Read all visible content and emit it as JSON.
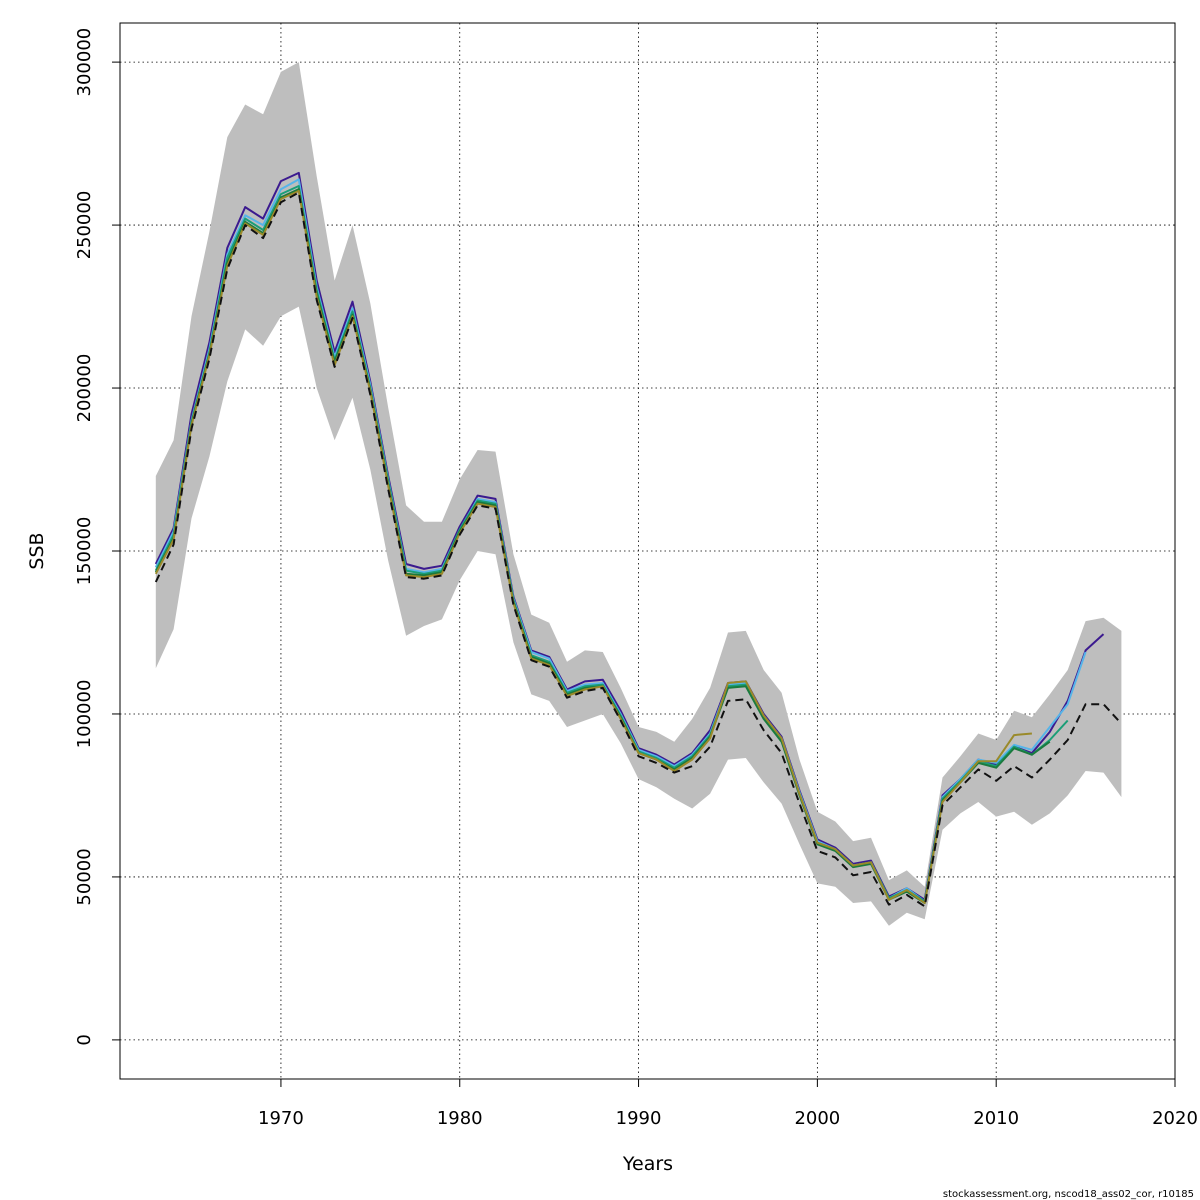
{
  "chart_data": {
    "type": "line",
    "xlabel": "Years",
    "ylabel": "SSB",
    "xlim": [
      1961,
      2020
    ],
    "ylim": [
      -12000,
      312000
    ],
    "x_ticks": [
      1970,
      1980,
      1990,
      2000,
      2010,
      2020
    ],
    "y_ticks": [
      0,
      50000,
      100000,
      150000,
      200000,
      250000,
      300000
    ],
    "grid": true,
    "footer": "stockassessment.org, nscod18_ass02_cor, r10185",
    "confidence_band": {
      "color": "#bebebe",
      "years": [
        1963,
        1964,
        1965,
        1966,
        1967,
        1968,
        1969,
        1970,
        1971,
        1972,
        1973,
        1974,
        1975,
        1976,
        1977,
        1978,
        1979,
        1980,
        1981,
        1982,
        1983,
        1984,
        1985,
        1986,
        1987,
        1988,
        1989,
        1990,
        1991,
        1992,
        1993,
        1994,
        1995,
        1996,
        1997,
        1998,
        1999,
        2000,
        2001,
        2002,
        2003,
        2004,
        2005,
        2006,
        2007,
        2008,
        2009,
        2010,
        2011,
        2012,
        2013,
        2014,
        2015,
        2016,
        2017
      ],
      "lower": [
        114000,
        126000,
        160000,
        179000,
        202000,
        218000,
        213000,
        222000,
        225000,
        200000,
        184000,
        197000,
        175000,
        147000,
        124000,
        127000,
        129000,
        141000,
        150000,
        149000,
        122000,
        106000,
        104000,
        96000,
        98000,
        100000,
        91000,
        80000,
        77500,
        74000,
        71000,
        75500,
        86000,
        86500,
        79000,
        72500,
        60000,
        48000,
        47000,
        42000,
        42500,
        35000,
        39000,
        37000,
        64500,
        69500,
        73000,
        68500,
        70000,
        66000,
        69500,
        75000,
        82500,
        82000,
        74500
      ],
      "upper": [
        173000,
        184000,
        222000,
        248000,
        277000,
        287000,
        284000,
        297000,
        300000,
        265000,
        233000,
        250000,
        226000,
        194000,
        164000,
        159000,
        159000,
        172000,
        181000,
        180500,
        149000,
        130500,
        128000,
        116000,
        119500,
        119000,
        108000,
        96000,
        94500,
        91500,
        98500,
        108000,
        125000,
        125500,
        113500,
        106500,
        86000,
        70000,
        67000,
        61000,
        62000,
        49000,
        52000,
        47000,
        80500,
        87000,
        94000,
        92000,
        101000,
        99000,
        106000,
        113500,
        128500,
        129500,
        125500
      ]
    },
    "series": [
      {
        "color": "#3b1a8f",
        "dash": "",
        "years": [
          1963,
          1964,
          1965,
          1966,
          1967,
          1968,
          1969,
          1970,
          1971,
          1972,
          1973,
          1974,
          1975,
          1976,
          1977,
          1978,
          1979,
          1980,
          1981,
          1982,
          1983,
          1984,
          1985,
          1986,
          1987,
          1988,
          1989,
          1990,
          1991,
          1992,
          1993,
          1994,
          1995,
          1996,
          1997,
          1998,
          1999,
          2000,
          2001,
          2002,
          2003,
          2004,
          2005,
          2006,
          2007,
          2008,
          2009,
          2010,
          2011,
          2012,
          2013,
          2014,
          2015,
          2016
        ],
        "values": [
          146000,
          157000,
          192000,
          214000,
          243000,
          255500,
          252000,
          263500,
          266000,
          233000,
          211000,
          226500,
          202000,
          173000,
          146000,
          144500,
          145500,
          157500,
          167000,
          166000,
          136000,
          119500,
          117500,
          107500,
          110000,
          110500,
          101000,
          89500,
          87500,
          84500,
          88000,
          95000,
          109500,
          110000,
          100000,
          93000,
          76500,
          61500,
          59000,
          54000,
          55000,
          44000,
          46500,
          43000,
          75000,
          80000,
          86000,
          84500,
          90000,
          88000,
          94500,
          104000,
          119500,
          124500
        ]
      },
      {
        "color": "#56b4e9",
        "dash": "",
        "years": [
          1963,
          1964,
          1965,
          1966,
          1967,
          1968,
          1969,
          1970,
          1971,
          1972,
          1973,
          1974,
          1975,
          1976,
          1977,
          1978,
          1979,
          1980,
          1981,
          1982,
          1983,
          1984,
          1985,
          1986,
          1987,
          1988,
          1989,
          1990,
          1991,
          1992,
          1993,
          1994,
          1995,
          1996,
          1997,
          1998,
          1999,
          2000,
          2001,
          2002,
          2003,
          2004,
          2005,
          2006,
          2007,
          2008,
          2009,
          2010,
          2011,
          2012,
          2013,
          2014,
          2015
        ],
        "values": [
          145000,
          156000,
          190000,
          212000,
          241000,
          253000,
          250000,
          261000,
          264000,
          231000,
          209500,
          224500,
          201000,
          172000,
          144500,
          143500,
          144500,
          156500,
          166000,
          165000,
          135500,
          119000,
          117000,
          107000,
          109000,
          109500,
          100000,
          89000,
          87000,
          84000,
          87500,
          94000,
          109000,
          109500,
          99500,
          92500,
          76000,
          61000,
          58500,
          53500,
          54500,
          43500,
          46500,
          42500,
          74500,
          80000,
          86000,
          85000,
          90500,
          89000,
          96000,
          103000,
          119000
        ]
      },
      {
        "color": "#1a9e77",
        "dash": "",
        "years": [
          1963,
          1964,
          1965,
          1966,
          1967,
          1968,
          1969,
          1970,
          1971,
          1972,
          1973,
          1974,
          1975,
          1976,
          1977,
          1978,
          1979,
          1980,
          1981,
          1982,
          1983,
          1984,
          1985,
          1986,
          1987,
          1988,
          1989,
          1990,
          1991,
          1992,
          1993,
          1994,
          1995,
          1996,
          1997,
          1998,
          1999,
          2000,
          2001,
          2002,
          2003,
          2004,
          2005,
          2006,
          2007,
          2008,
          2009,
          2010,
          2011,
          2012,
          2013,
          2014
        ],
        "values": [
          144000,
          155000,
          189500,
          211000,
          240000,
          252000,
          248500,
          259500,
          262000,
          230000,
          208500,
          223500,
          200000,
          171500,
          144000,
          143000,
          144000,
          156500,
          165500,
          164500,
          135000,
          118000,
          116000,
          106500,
          108500,
          109000,
          99500,
          88500,
          86500,
          83500,
          87000,
          93500,
          108500,
          109000,
          99000,
          92000,
          75500,
          60500,
          58500,
          53500,
          54500,
          43500,
          46000,
          42500,
          74000,
          79500,
          85500,
          84000,
          90000,
          87500,
          92000,
          98000
        ]
      },
      {
        "color": "#1b7a3e",
        "dash": "",
        "years": [
          1963,
          1964,
          1965,
          1966,
          1967,
          1968,
          1969,
          1970,
          1971,
          1972,
          1973,
          1974,
          1975,
          1976,
          1977,
          1978,
          1979,
          1980,
          1981,
          1982,
          1983,
          1984,
          1985,
          1986,
          1987,
          1988,
          1989,
          1990,
          1991,
          1992,
          1993,
          1994,
          1995,
          1996,
          1997,
          1998,
          1999,
          2000,
          2001,
          2002,
          2003,
          2004,
          2005,
          2006,
          2007,
          2008,
          2009,
          2010,
          2011,
          2012,
          2013
        ],
        "values": [
          143500,
          154000,
          189000,
          210500,
          238500,
          251000,
          247500,
          258500,
          261000,
          229000,
          208000,
          222500,
          199500,
          170500,
          143000,
          142500,
          143500,
          156000,
          165000,
          164000,
          134500,
          117500,
          115500,
          106000,
          108000,
          108500,
          99000,
          88000,
          86000,
          83000,
          86500,
          93000,
          108000,
          108500,
          98500,
          91500,
          75000,
          60000,
          58000,
          53000,
          54000,
          43000,
          45500,
          42000,
          73500,
          79000,
          85000,
          83500,
          89500,
          87500,
          91500
        ]
      },
      {
        "color": "#9a8a2a",
        "dash": "",
        "years": [
          1963,
          1964,
          1965,
          1966,
          1967,
          1968,
          1969,
          1970,
          1971,
          1972,
          1973,
          1974,
          1975,
          1976,
          1977,
          1978,
          1979,
          1980,
          1981,
          1982,
          1983,
          1984,
          1985,
          1986,
          1987,
          1988,
          1989,
          1990,
          1991,
          1992,
          1993,
          1994,
          1995,
          1996,
          1997,
          1998,
          1999,
          2000,
          2001,
          2002,
          2003,
          2004,
          2005,
          2006,
          2007,
          2008,
          2009,
          2010,
          2011,
          2012
        ],
        "values": [
          143000,
          153500,
          188500,
          210000,
          237500,
          250500,
          247000,
          258000,
          260500,
          228000,
          207000,
          222000,
          199000,
          170000,
          142500,
          142000,
          143000,
          155500,
          164500,
          163500,
          134000,
          117000,
          115000,
          105500,
          107500,
          108500,
          98500,
          88000,
          86000,
          82500,
          86000,
          92500,
          109500,
          110000,
          99500,
          92500,
          75500,
          60500,
          58500,
          53500,
          54500,
          43000,
          46000,
          42000,
          73000,
          79000,
          85500,
          85500,
          93500,
          94000
        ]
      },
      {
        "color": "#111111",
        "dash": "8 5",
        "years": [
          1963,
          1964,
          1965,
          1966,
          1967,
          1968,
          1969,
          1970,
          1971,
          1972,
          1973,
          1974,
          1975,
          1976,
          1977,
          1978,
          1979,
          1980,
          1981,
          1982,
          1983,
          1984,
          1985,
          1986,
          1987,
          1988,
          1989,
          1990,
          1991,
          1992,
          1993,
          1994,
          1995,
          1996,
          1997,
          1998,
          1999,
          2000,
          2001,
          2002,
          2003,
          2004,
          2005,
          2006,
          2007,
          2008,
          2009,
          2010,
          2011,
          2012,
          2013,
          2014,
          2015,
          2016,
          2017
        ],
        "values": [
          140500,
          152000,
          187500,
          209000,
          236500,
          250000,
          246000,
          257000,
          260000,
          227000,
          206500,
          221500,
          198000,
          169000,
          142000,
          141500,
          142500,
          155000,
          164000,
          163000,
          133500,
          116500,
          114500,
          105000,
          107000,
          108000,
          98000,
          87000,
          85000,
          82000,
          84000,
          90000,
          104000,
          104500,
          95000,
          88000,
          72500,
          58000,
          56000,
          50500,
          51500,
          41500,
          44500,
          41000,
          72000,
          77500,
          83000,
          79500,
          84000,
          80500,
          86000,
          92000,
          103000,
          103000,
          97000
        ]
      }
    ]
  }
}
